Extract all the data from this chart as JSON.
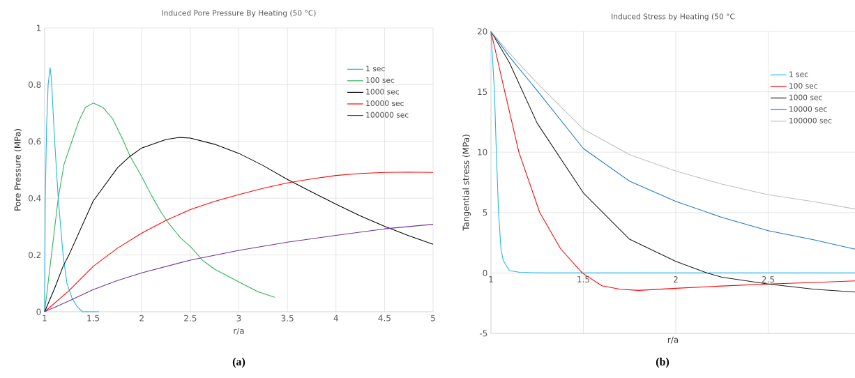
{
  "chart_data": [
    {
      "type": "line",
      "title": "Induced Pore Pressure By Heating (50 °C)",
      "xlabel": "r/a",
      "ylabel": "Pore Pressure  (MPa)",
      "xlim": [
        1,
        5
      ],
      "xticks": [
        1,
        1.5,
        2,
        2.5,
        3,
        3.5,
        4,
        4.5,
        5
      ],
      "ylim": [
        0,
        1
      ],
      "yticks": [
        0,
        0.2,
        0.4,
        0.6,
        0.8,
        1
      ],
      "grid": true,
      "legend": "top right",
      "annotations": [
        "(a)"
      ],
      "series": [
        {
          "name": "1 sec",
          "color": "#1cb4ea",
          "x": [
            1,
            1.007,
            1.02,
            1.036,
            1.056,
            1.07,
            1.1,
            1.14,
            1.19,
            1.23,
            1.28,
            1.33,
            1.39,
            1.45,
            1.56
          ],
          "values": [
            0,
            0.4,
            0.65,
            0.8,
            0.86,
            0.82,
            0.62,
            0.4,
            0.2,
            0.1,
            0.05,
            0.02,
            0,
            0,
            0
          ]
        },
        {
          "name": "100 sec",
          "color": "#2ab35a",
          "x": [
            1,
            1.07,
            1.14,
            1.2,
            1.28,
            1.35,
            1.42,
            1.5,
            1.6,
            1.7,
            1.8,
            1.88,
            2,
            2.1,
            2.2,
            2.27,
            2.4,
            2.5,
            2.63,
            2.75,
            3,
            3.2,
            3.37
          ],
          "values": [
            0,
            0.2,
            0.4,
            0.52,
            0.6,
            0.67,
            0.72,
            0.735,
            0.72,
            0.68,
            0.61,
            0.548,
            0.476,
            0.41,
            0.35,
            0.315,
            0.26,
            0.23,
            0.18,
            0.15,
            0.105,
            0.07,
            0.051
          ]
        },
        {
          "name": "1000 sec",
          "color": "#000000",
          "x": [
            1,
            1.1,
            1.19,
            1.25,
            1.5,
            1.75,
            1.88,
            2,
            2.25,
            2.39,
            2.5,
            2.75,
            3,
            3.25,
            3.5,
            3.75,
            4,
            4.25,
            4.5,
            4.75,
            5
          ],
          "values": [
            0,
            0.08,
            0.16,
            0.2,
            0.39,
            0.507,
            0.548,
            0.577,
            0.607,
            0.614,
            0.612,
            0.59,
            0.558,
            0.515,
            0.466,
            0.422,
            0.379,
            0.338,
            0.301,
            0.268,
            0.238
          ]
        },
        {
          "name": "10000 sec",
          "color": "#ff0000",
          "x": [
            1,
            1.25,
            1.5,
            1.75,
            2,
            2.25,
            2.5,
            2.75,
            3,
            3.25,
            3.5,
            3.75,
            4,
            4.25,
            4.5,
            4.75,
            5
          ],
          "values": [
            0,
            0.074,
            0.16,
            0.224,
            0.277,
            0.322,
            0.36,
            0.389,
            0.413,
            0.435,
            0.454,
            0.468,
            0.48,
            0.487,
            0.491,
            0.492,
            0.491
          ]
        },
        {
          "name": "100000 sec",
          "color": "#7030a0",
          "x": [
            1,
            1.25,
            1.5,
            1.75,
            2,
            2.5,
            3,
            3.5,
            4,
            4.5,
            5
          ],
          "values": [
            0,
            0.038,
            0.078,
            0.11,
            0.137,
            0.182,
            0.216,
            0.245,
            0.269,
            0.292,
            0.308
          ]
        }
      ]
    },
    {
      "type": "line",
      "title": "Induced Stress by Heating (50 °C",
      "xlabel": "r/a",
      "ylabel": "Tangential stress (MPa)",
      "xlim": [
        1,
        2.97
      ],
      "xticks": [
        1,
        1.5,
        2,
        2.5
      ],
      "ylim": [
        -5,
        20
      ],
      "yticks": [
        -5,
        0,
        5,
        10,
        15,
        20
      ],
      "grid": true,
      "legend": "top right",
      "annotations": [
        "(b)"
      ],
      "series": [
        {
          "name": "1 sec",
          "color": "#1cb4ec",
          "x": [
            1,
            1.019,
            1.029,
            1.041,
            1.054,
            1.067,
            1.1,
            1.157,
            1.3,
            2.97
          ],
          "values": [
            20,
            15,
            10,
            5,
            2,
            1,
            0.2,
            0.05,
            0,
            0
          ]
        },
        {
          "name": "100 sec",
          "color": "#ff0000",
          "x": [
            1,
            1.075,
            1.151,
            1.264,
            1.377,
            1.494,
            1.6,
            1.7,
            1.8,
            2,
            2.25,
            2.5,
            2.75,
            2.97
          ],
          "values": [
            20,
            15,
            10,
            5,
            2,
            0,
            -1.06,
            -1.35,
            -1.44,
            -1.27,
            -1.08,
            -0.92,
            -0.78,
            -0.66
          ]
        },
        {
          "name": "1000 sec",
          "color": "#1a1a1a",
          "x": [
            1,
            1.1,
            1.25,
            1.5,
            1.75,
            2,
            2.17,
            2.25,
            2.5,
            2.75,
            2.97
          ],
          "values": [
            20,
            17.4,
            12.4,
            6.63,
            2.79,
            0.96,
            0,
            -0.35,
            -0.92,
            -1.35,
            -1.58
          ]
        },
        {
          "name": "10000 sec",
          "color": "#1e78c8",
          "x": [
            1,
            1.1,
            1.25,
            1.5,
            1.75,
            2,
            2.25,
            2.5,
            2.75,
            2.97
          ],
          "values": [
            20,
            17.9,
            15.1,
            10.3,
            7.6,
            5.92,
            4.6,
            3.5,
            2.74,
            1.97
          ]
        },
        {
          "name": "100000 sec",
          "color": "#c0c0c0",
          "x": [
            1,
            1.1,
            1.25,
            1.5,
            1.75,
            2,
            2.25,
            2.5,
            2.75,
            2.97
          ],
          "values": [
            20,
            18.2,
            15.7,
            11.9,
            9.8,
            8.44,
            7.35,
            6.47,
            5.9,
            5.3
          ]
        }
      ]
    }
  ]
}
